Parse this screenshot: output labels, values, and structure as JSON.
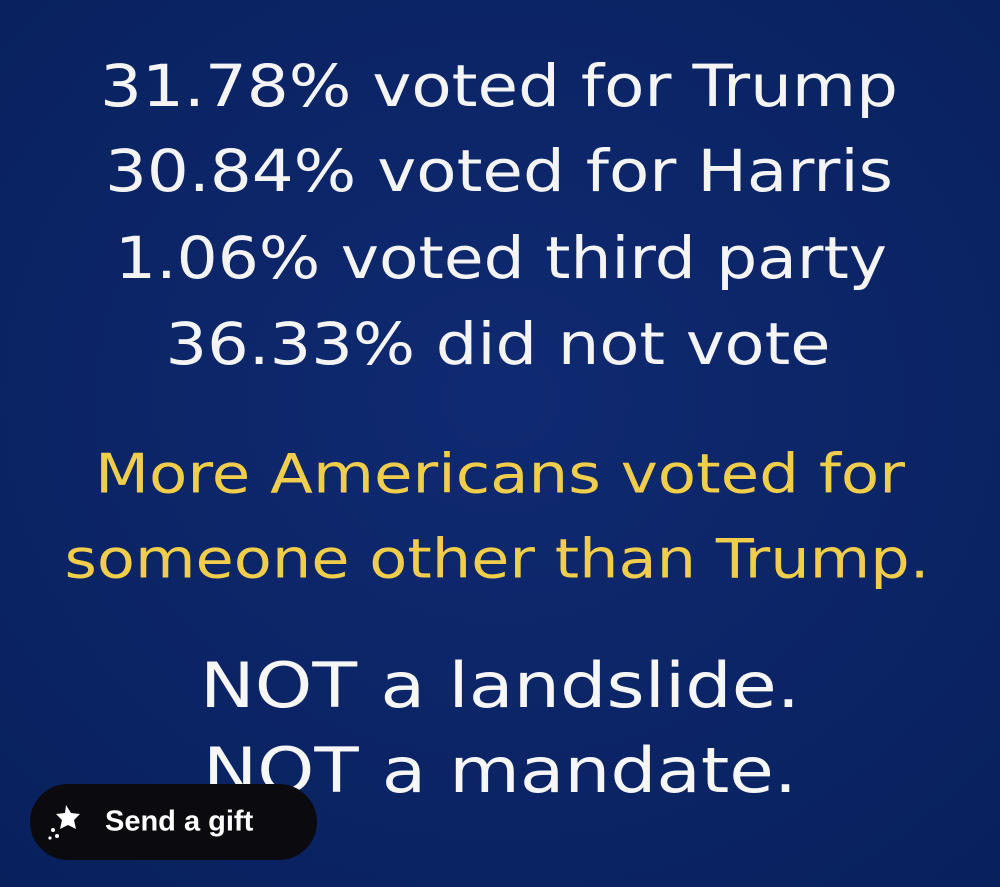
{
  "image": {
    "stats": [
      "31.78% voted for Trump",
      "30.84% voted for Harris",
      "1.06% voted third party",
      "36.33% did not vote"
    ],
    "highlight": [
      "More Americans voted for",
      "someone other than Trump."
    ],
    "conclusion": [
      "NOT a landslide.",
      "NOT a mandate."
    ]
  },
  "button": {
    "label": "Send a gift"
  }
}
